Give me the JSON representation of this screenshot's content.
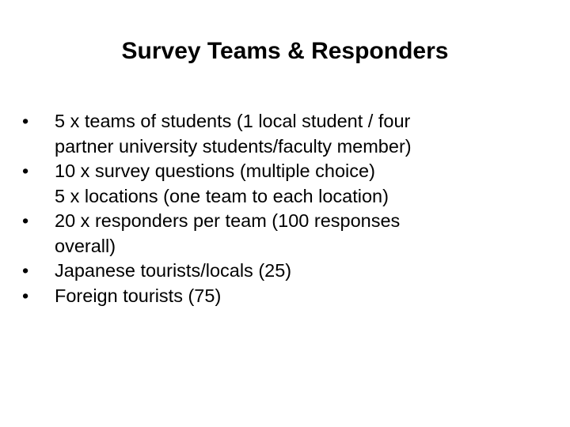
{
  "title": "Survey Teams & Responders",
  "bullets": [
    {
      "lines": [
        "5 x teams of students (1 local student / four",
        "partner university students/faculty member)"
      ]
    },
    {
      "lines": [
        "10 x survey questions (multiple choice)",
        "5 x locations (one team to each location)"
      ]
    },
    {
      "lines": [
        "20 x responders per team (100 responses",
        "overall)"
      ]
    },
    {
      "lines": [
        "Japanese tourists/locals (25)"
      ]
    },
    {
      "lines": [
        "Foreign tourists (75)"
      ]
    }
  ]
}
